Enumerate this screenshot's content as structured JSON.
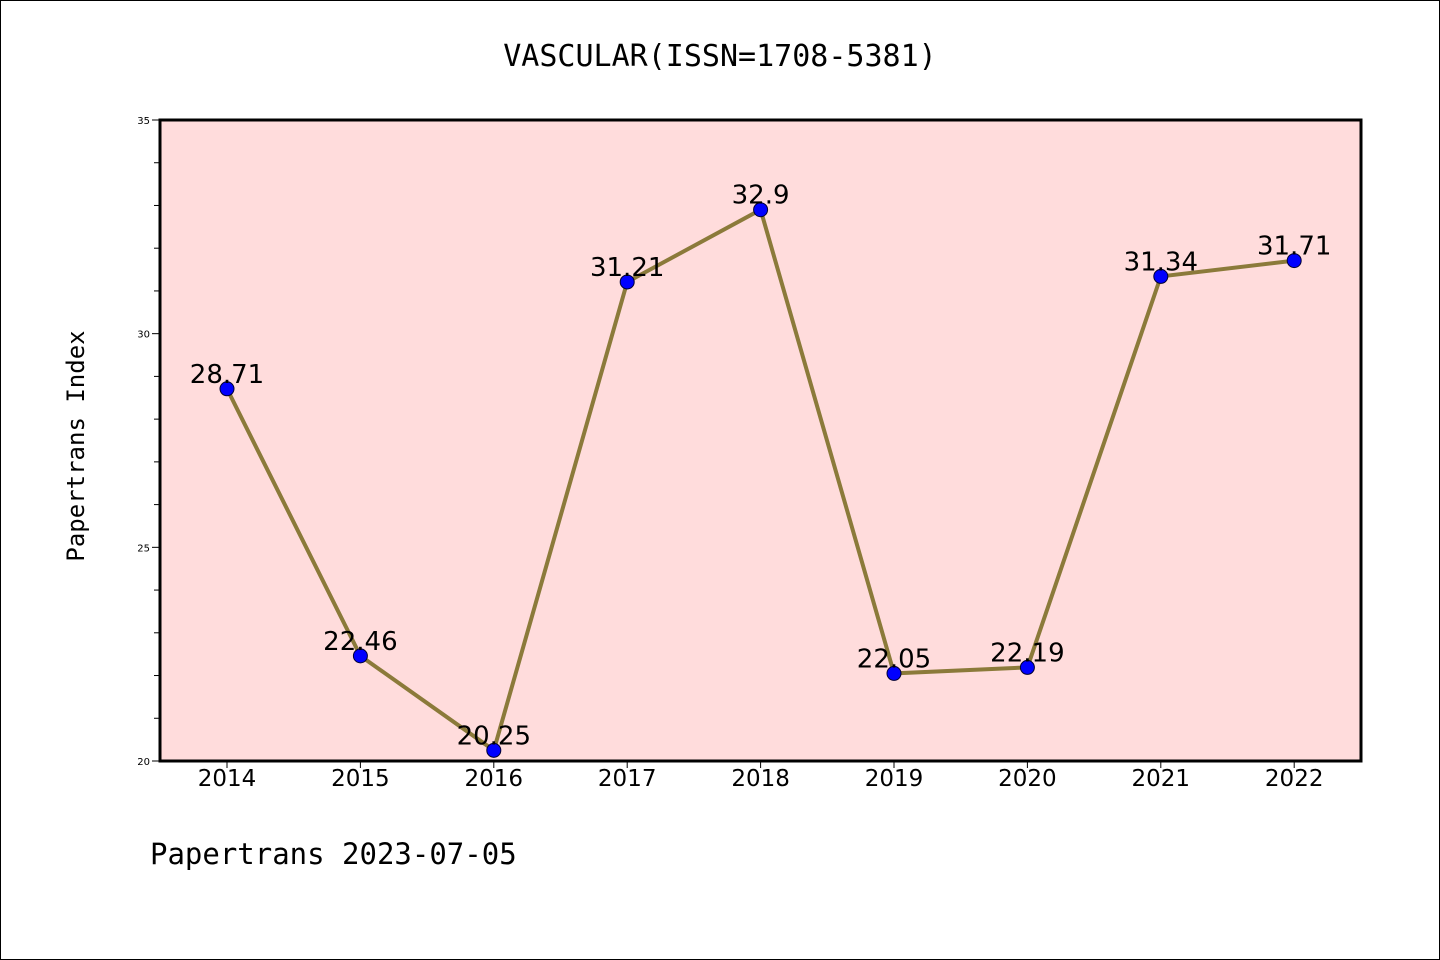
{
  "chart_data": {
    "type": "line",
    "title": "VASCULAR(ISSN=1708-5381)",
    "ylabel": "Papertrans Index",
    "xlabel": "",
    "categories": [
      "2014",
      "2015",
      "2016",
      "2017",
      "2018",
      "2019",
      "2020",
      "2021",
      "2022"
    ],
    "values": [
      28.71,
      22.46,
      20.25,
      31.21,
      32.9,
      22.05,
      22.19,
      31.34,
      31.71
    ],
    "data_labels": [
      "28.71",
      "22.46",
      "20.25",
      "31.21",
      "32.9",
      "22.05",
      "22.19",
      "31.34",
      "31.71"
    ],
    "ylim": [
      20,
      35
    ],
    "y_ticks": [
      20,
      25,
      30,
      35
    ],
    "grid": false,
    "legend": "none",
    "line_color": "#8b7a3a",
    "marker_color": "#0000ff",
    "plot_background": "#ffdcdc"
  },
  "footer": "Papertrans 2023-07-05"
}
